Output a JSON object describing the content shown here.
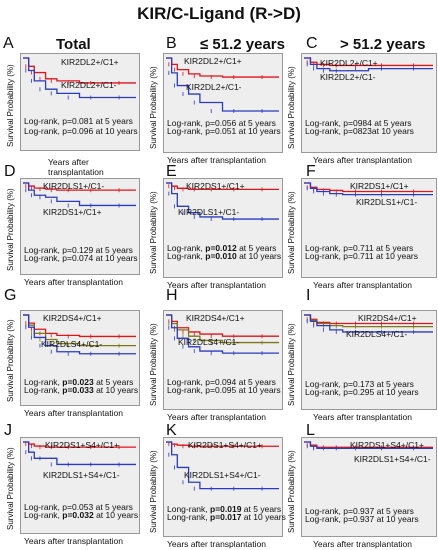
{
  "title": "KIR/C-Ligand  (R->D)",
  "columns": [
    "Total",
    "≤ 51.2 years",
    "> 51.2 years"
  ],
  "y_axis_label": "Survival Probability (%)",
  "x_axis_label": "Years after transplantation",
  "x_axis_label_a": [
    "Years after",
    "transplantation"
  ],
  "colors": {
    "red": "#e0141b",
    "blue": "#2b3bbf",
    "olive": "#7a7a1a",
    "panel": "#eeeeee"
  },
  "chart_data": [
    {
      "id": "A",
      "type": "line",
      "xlim": [
        0,
        10
      ],
      "ylim": [
        0,
        100
      ],
      "labels": [
        "KIR2DL2+/C1+",
        "KIR2DL2+/C1-"
      ],
      "logrank": [
        "Log-rank, p=0.081 at 5 years",
        "Log-rank, p=0.096 at 10 years"
      ],
      "bold": [
        false,
        false
      ],
      "series": [
        {
          "color": "red",
          "x": [
            0,
            0.5,
            1,
            2,
            3,
            5,
            7,
            10
          ],
          "y": [
            100,
            92,
            86,
            80,
            78,
            76,
            76,
            76
          ]
        },
        {
          "color": "blue",
          "x": [
            0,
            0.5,
            1,
            2,
            3,
            5,
            7,
            10
          ],
          "y": [
            100,
            88,
            78,
            70,
            66,
            62,
            62,
            62
          ]
        }
      ]
    },
    {
      "id": "B",
      "type": "line",
      "xlim": [
        0,
        10
      ],
      "ylim": [
        0,
        100
      ],
      "labels": [
        "KIR2DL2+/C1+",
        "KIR2DL2+/C1-"
      ],
      "logrank": [
        "Log-rank, p=0.056 at 5 years",
        "Log-rank, p=0.051 at 10 years"
      ],
      "bold": [
        false,
        false
      ],
      "series": [
        {
          "color": "red",
          "x": [
            0,
            0.5,
            1,
            2,
            3,
            5,
            7,
            10
          ],
          "y": [
            100,
            94,
            89,
            85,
            83,
            82,
            82,
            82
          ]
        },
        {
          "color": "blue",
          "x": [
            0,
            0.5,
            1,
            2,
            3,
            5,
            7,
            10
          ],
          "y": [
            100,
            86,
            74,
            66,
            58,
            50,
            50,
            50
          ]
        }
      ]
    },
    {
      "id": "C",
      "type": "line",
      "xlim": [
        0,
        10
      ],
      "ylim": [
        0,
        100
      ],
      "labels": [
        "KIR2DL2+/C1+",
        "KIR2DL2+/C1-"
      ],
      "logrank": [
        "Log-rank, p=0984 at 5 years",
        "Log-rank, p=0823at 10 years"
      ],
      "bold": [
        false,
        false
      ],
      "series": [
        {
          "color": "red",
          "x": [
            0,
            0.5,
            1,
            2,
            3,
            5,
            7,
            10
          ],
          "y": [
            100,
            96,
            94,
            93,
            93,
            93,
            93,
            93
          ]
        },
        {
          "color": "blue",
          "x": [
            0,
            0.5,
            1,
            2,
            3,
            5,
            7,
            10
          ],
          "y": [
            100,
            94,
            90,
            88,
            88,
            90,
            90,
            90
          ]
        }
      ]
    },
    {
      "id": "D",
      "type": "line",
      "xlim": [
        0,
        10
      ],
      "ylim": [
        0,
        100
      ],
      "labels": [
        "KIR2DLS1+/C1-",
        "KIR2DS1+/C1+"
      ],
      "logrank": [
        "Log-rank, p=0.129 at 5 years",
        "Log-rank, p=0.074 at 10 years"
      ],
      "bold": [
        false,
        false
      ],
      "series": [
        {
          "color": "red",
          "x": [
            0,
            0.5,
            1,
            2,
            3,
            5,
            7,
            10
          ],
          "y": [
            100,
            97,
            95,
            94,
            93,
            93,
            93,
            93
          ]
        },
        {
          "color": "blue",
          "x": [
            0,
            0.5,
            1,
            2,
            3,
            5,
            7,
            10
          ],
          "y": [
            100,
            93,
            88,
            86,
            82,
            78,
            78,
            78
          ]
        }
      ]
    },
    {
      "id": "E",
      "type": "line",
      "xlim": [
        0,
        10
      ],
      "ylim": [
        0,
        100
      ],
      "labels": [
        "KIR2DS1+/C1+",
        "KIR2DLS1+/C1-"
      ],
      "logrank": [
        "Log-rank, p=0.012 at 5 years",
        "Log-rank, p=0.010 at 10 years"
      ],
      "bold": [
        true,
        true
      ],
      "series": [
        {
          "color": "red",
          "x": [
            0,
            0.5,
            1,
            2,
            3,
            5,
            7,
            10
          ],
          "y": [
            100,
            97,
            95,
            94,
            94,
            94,
            94,
            94
          ]
        },
        {
          "color": "blue",
          "x": [
            0,
            0.5,
            1,
            2,
            3,
            5,
            7,
            10
          ],
          "y": [
            100,
            90,
            78,
            72,
            68,
            66,
            66,
            66
          ]
        }
      ]
    },
    {
      "id": "F",
      "type": "line",
      "xlim": [
        0,
        10
      ],
      "ylim": [
        0,
        100
      ],
      "labels": [
        "KIR2DS1+/C1+",
        "KIR2DLS1+/C1-"
      ],
      "logrank": [
        "Log-rank, p=0.711 at 5 years",
        "Log-rank, p=0.711 at 10 years"
      ],
      "bold": [
        false,
        false
      ],
      "series": [
        {
          "color": "red",
          "x": [
            0,
            0.5,
            1,
            2,
            3,
            5,
            7,
            10
          ],
          "y": [
            100,
            96,
            94,
            93,
            92,
            92,
            92,
            92
          ]
        },
        {
          "color": "blue",
          "x": [
            0,
            0.5,
            1,
            2,
            3,
            5,
            7,
            10
          ],
          "y": [
            100,
            95,
            92,
            90,
            89,
            89,
            89,
            89
          ]
        }
      ]
    },
    {
      "id": "G",
      "type": "line",
      "xlim": [
        0,
        10
      ],
      "ylim": [
        0,
        100
      ],
      "labels": [
        "KIR2DS4+/C1+",
        "KIR2DLS4+/C1-"
      ],
      "logrank": [
        "Log-rank, p=0.023 at 5 years",
        "Log-rank, p=0.033 at 10 years"
      ],
      "bold": [
        true,
        true
      ],
      "series": [
        {
          "color": "red",
          "x": [
            0,
            0.5,
            1,
            2,
            3,
            5,
            7,
            10
          ],
          "y": [
            100,
            92,
            86,
            82,
            80,
            79,
            79,
            79
          ]
        },
        {
          "color": "olive",
          "x": [
            0,
            0.5,
            1,
            2,
            3,
            5,
            7,
            10
          ],
          "y": [
            100,
            90,
            82,
            76,
            72,
            70,
            70,
            70
          ]
        },
        {
          "color": "blue",
          "x": [
            0,
            0.5,
            1,
            2,
            3,
            5,
            7,
            10
          ],
          "y": [
            100,
            88,
            78,
            70,
            64,
            62,
            62,
            62
          ]
        }
      ]
    },
    {
      "id": "H",
      "type": "line",
      "xlim": [
        0,
        10
      ],
      "ylim": [
        0,
        100
      ],
      "labels": [
        "KIR2DS4+/C1+",
        "KIR2DLS4+/C1-"
      ],
      "logrank": [
        "Log-rank, p=0.094 at 5 years",
        "Log-rank, p=0.095 at 10 years"
      ],
      "bold": [
        false,
        false
      ],
      "series": [
        {
          "color": "red",
          "x": [
            0,
            0.5,
            1,
            2,
            3,
            5,
            7,
            10
          ],
          "y": [
            100,
            94,
            88,
            84,
            82,
            80,
            80,
            80
          ]
        },
        {
          "color": "olive",
          "x": [
            0,
            0.5,
            1,
            2,
            3,
            5,
            7,
            10
          ],
          "y": [
            100,
            92,
            86,
            80,
            76,
            74,
            74,
            74
          ]
        },
        {
          "color": "blue",
          "x": [
            0,
            0.5,
            1,
            2,
            3,
            5,
            7,
            10
          ],
          "y": [
            100,
            88,
            78,
            70,
            66,
            64,
            64,
            64
          ]
        }
      ]
    },
    {
      "id": "I",
      "type": "line",
      "xlim": [
        0,
        10
      ],
      "ylim": [
        0,
        100
      ],
      "labels": [
        "KIR2DS4+/C1+",
        "KIR2DLS4+/C1-"
      ],
      "logrank": [
        "Log-rank, p=0.173 at 5 years",
        "Log-rank, p=0.295 at 10 years"
      ],
      "bold": [
        false,
        false
      ],
      "series": [
        {
          "color": "red",
          "x": [
            0,
            0.5,
            1,
            2,
            3,
            5,
            7,
            10
          ],
          "y": [
            100,
            96,
            93,
            92,
            92,
            92,
            92,
            92
          ]
        },
        {
          "color": "olive",
          "x": [
            0,
            0.5,
            1,
            2,
            3,
            5,
            7,
            10
          ],
          "y": [
            100,
            95,
            92,
            90,
            89,
            89,
            89,
            89
          ]
        },
        {
          "color": "blue",
          "x": [
            0,
            0.5,
            1,
            2,
            3,
            5,
            7,
            10
          ],
          "y": [
            100,
            94,
            90,
            86,
            84,
            84,
            84,
            84
          ]
        }
      ]
    },
    {
      "id": "J",
      "type": "line",
      "xlim": [
        0,
        10
      ],
      "ylim": [
        0,
        100
      ],
      "labels": [
        "KIR2DS1+S4+/C1+",
        "KIR2DLS1+S4+/C1-"
      ],
      "logrank": [
        "Log-rank, p=0.053 at 5 years",
        "Log-rank, p=0.032 at 10 years"
      ],
      "bold": [
        false,
        true
      ],
      "series": [
        {
          "color": "red",
          "x": [
            0,
            0.5,
            1,
            2,
            3,
            5,
            7,
            10
          ],
          "y": [
            100,
            98,
            96,
            95,
            95,
            95,
            95,
            95
          ]
        },
        {
          "color": "blue",
          "x": [
            0,
            0.5,
            1,
            2,
            3,
            5,
            7,
            10
          ],
          "y": [
            100,
            90,
            84,
            84,
            78,
            78,
            78,
            78
          ]
        }
      ]
    },
    {
      "id": "K",
      "type": "line",
      "xlim": [
        0,
        10
      ],
      "ylim": [
        0,
        100
      ],
      "labels": [
        "KIR2DS1+S4+/C1+",
        "KIR2DLS1+S4+/C1-"
      ],
      "logrank": [
        "Long-rank, p=0.019 at 5 years",
        "Long-rank, p=0.017 at 10 years"
      ],
      "bold": [
        true,
        true
      ],
      "series": [
        {
          "color": "red",
          "x": [
            0,
            0.5,
            1,
            2,
            3,
            5,
            7,
            10
          ],
          "y": [
            100,
            98,
            97,
            96,
            96,
            96,
            96,
            96
          ]
        },
        {
          "color": "blue",
          "x": [
            0,
            0.5,
            1,
            2,
            3,
            5,
            7,
            10
          ],
          "y": [
            100,
            88,
            76,
            62,
            56,
            56,
            56,
            56
          ]
        }
      ]
    },
    {
      "id": "L",
      "type": "line",
      "xlim": [
        0,
        10
      ],
      "ylim": [
        0,
        100
      ],
      "labels": [
        "KIR2DS1+S4+/C1+",
        "KIR2DLS1+S4+/C1-"
      ],
      "logrank": [
        "Log-rank, p=0.937 at 5 years",
        "Log-rank, p=0.937 at 10 years"
      ],
      "bold": [
        false,
        false
      ],
      "series": [
        {
          "color": "red",
          "x": [
            0,
            0.5,
            1,
            2,
            3,
            5,
            7,
            10
          ],
          "y": [
            100,
            97,
            95,
            95,
            95,
            95,
            95,
            95
          ]
        },
        {
          "color": "blue",
          "x": [
            0,
            0.5,
            1,
            2,
            3,
            5,
            7,
            10
          ],
          "y": [
            100,
            96,
            94,
            94,
            94,
            94,
            94,
            94
          ]
        }
      ]
    }
  ]
}
